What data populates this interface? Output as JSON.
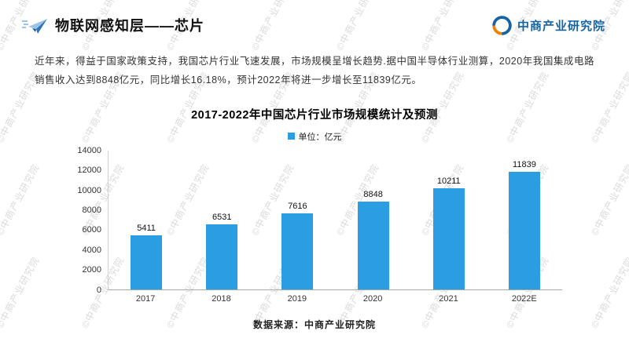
{
  "header": {
    "title": "物联网感知层——芯片",
    "brand": "中商产业研究院"
  },
  "intro": {
    "text": "近年来，得益于国家政策支持，我国芯片行业飞速发展，市场规模呈增长趋势.据中国半导体行业测算，2020年我国集成电路销售收入达到8848亿元，同比增长16.18%，预计2022年将进一步增长至11839亿元。"
  },
  "chart_data": {
    "type": "bar",
    "title": "2017-2022年中国芯片行业市场规模统计及预测",
    "legend": "单位：亿元",
    "categories": [
      "2017",
      "2018",
      "2019",
      "2020",
      "2021",
      "2022E"
    ],
    "values": [
      5411,
      6531,
      7616,
      8848,
      10211,
      11839
    ],
    "ylim": [
      0,
      14000
    ],
    "yticks": [
      0,
      2000,
      4000,
      6000,
      8000,
      10000,
      12000,
      14000
    ],
    "bar_color": "#2B9DE3",
    "grid": false,
    "legend_position": "top"
  },
  "footer": {
    "source": "数据来源：中商产业研究院"
  },
  "watermark": {
    "text": "©中商产业研究院"
  },
  "colors": {
    "accent_blue": "#2e75b6",
    "accent_light_blue": "#9dc3e6",
    "brand_blue": "#1464a5",
    "brand_orange": "#f08200",
    "watermark_gray": "#d7d7d7"
  }
}
